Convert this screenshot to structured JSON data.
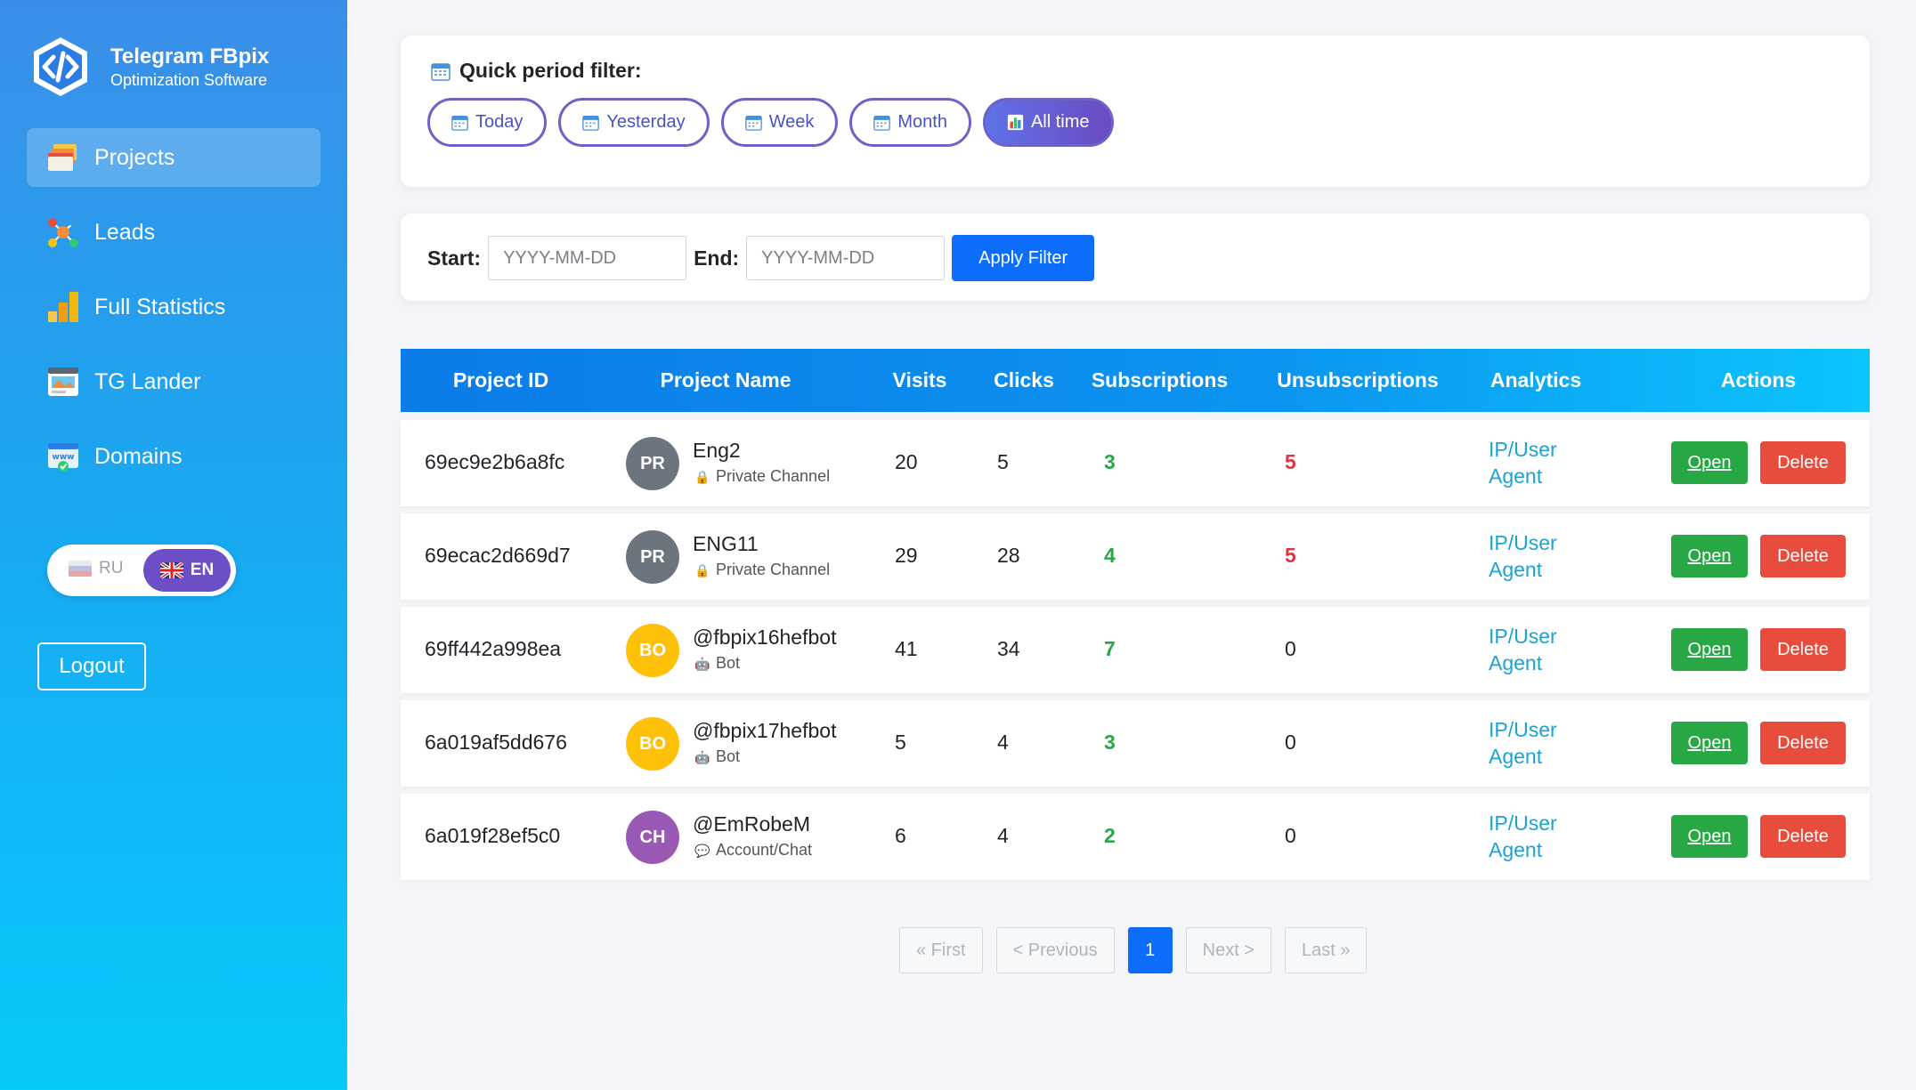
{
  "brand": {
    "title": "Telegram FBpix",
    "subtitle": "Optimization Software"
  },
  "nav": [
    {
      "label": "Projects",
      "icon": "folders-icon",
      "active": true
    },
    {
      "label": "Leads",
      "icon": "people-network-icon",
      "active": false
    },
    {
      "label": "Full Statistics",
      "icon": "bar-chart-icon",
      "active": false
    },
    {
      "label": "TG Lander",
      "icon": "landing-page-icon",
      "active": false
    },
    {
      "label": "Domains",
      "icon": "www-domain-icon",
      "active": false
    }
  ],
  "language": {
    "ru": "RU",
    "en": "EN",
    "active": "EN"
  },
  "logout_label": "Logout",
  "quick_filter": {
    "title": "Quick period filter:",
    "options": [
      "Today",
      "Yesterday",
      "Week",
      "Month",
      "All time"
    ],
    "active": "All time"
  },
  "range_filter": {
    "start_label": "Start:",
    "end_label": "End:",
    "start_placeholder": "YYYY-MM-DD",
    "end_placeholder": "YYYY-MM-DD",
    "apply_label": "Apply Filter"
  },
  "table": {
    "columns": [
      "Project ID",
      "Project Name",
      "Visits",
      "Clicks",
      "Subscriptions",
      "Unsubscriptions",
      "Analytics",
      "Actions"
    ],
    "analytics_line1": "IP/User",
    "analytics_line2": "Agent",
    "open_label": "Open",
    "delete_label": "Delete",
    "rows": [
      {
        "id": "69ec9e2b6a8fc",
        "avatar": "PR",
        "avatar_color": "#6c757d",
        "name": "Eng2",
        "type": "Private Channel",
        "type_icon": "lock-icon",
        "visits": "20",
        "clicks": "5",
        "subscriptions": "3",
        "unsubscriptions": "5"
      },
      {
        "id": "69ecac2d669d7",
        "avatar": "PR",
        "avatar_color": "#6c757d",
        "name": "ENG11",
        "type": "Private Channel",
        "type_icon": "lock-icon",
        "visits": "29",
        "clicks": "28",
        "subscriptions": "4",
        "unsubscriptions": "5"
      },
      {
        "id": "69ff442a998ea",
        "avatar": "BO",
        "avatar_color": "#ffc107",
        "name": "@fbpix16hefbot",
        "type": "Bot",
        "type_icon": "robot-icon",
        "visits": "41",
        "clicks": "34",
        "subscriptions": "7",
        "unsubscriptions": "0"
      },
      {
        "id": "6a019af5dd676",
        "avatar": "BO",
        "avatar_color": "#ffc107",
        "name": "@fbpix17hefbot",
        "type": "Bot",
        "type_icon": "robot-icon",
        "visits": "5",
        "clicks": "4",
        "subscriptions": "3",
        "unsubscriptions": "0"
      },
      {
        "id": "6a019f28ef5c0",
        "avatar": "CH",
        "avatar_color": "#9b59b6",
        "name": "@EmRobeM",
        "type": "Account/Chat",
        "type_icon": "speech-bubble-icon",
        "visits": "6",
        "clicks": "4",
        "subscriptions": "2",
        "unsubscriptions": "0"
      }
    ]
  },
  "pagination": {
    "first": "« First",
    "previous": "< Previous",
    "current": "1",
    "next": "Next >",
    "last": "Last »"
  },
  "colors": {
    "accent": "#0d6efd",
    "success": "#28a745",
    "danger": "#e74c3c",
    "purple": "#6b4ac2"
  }
}
